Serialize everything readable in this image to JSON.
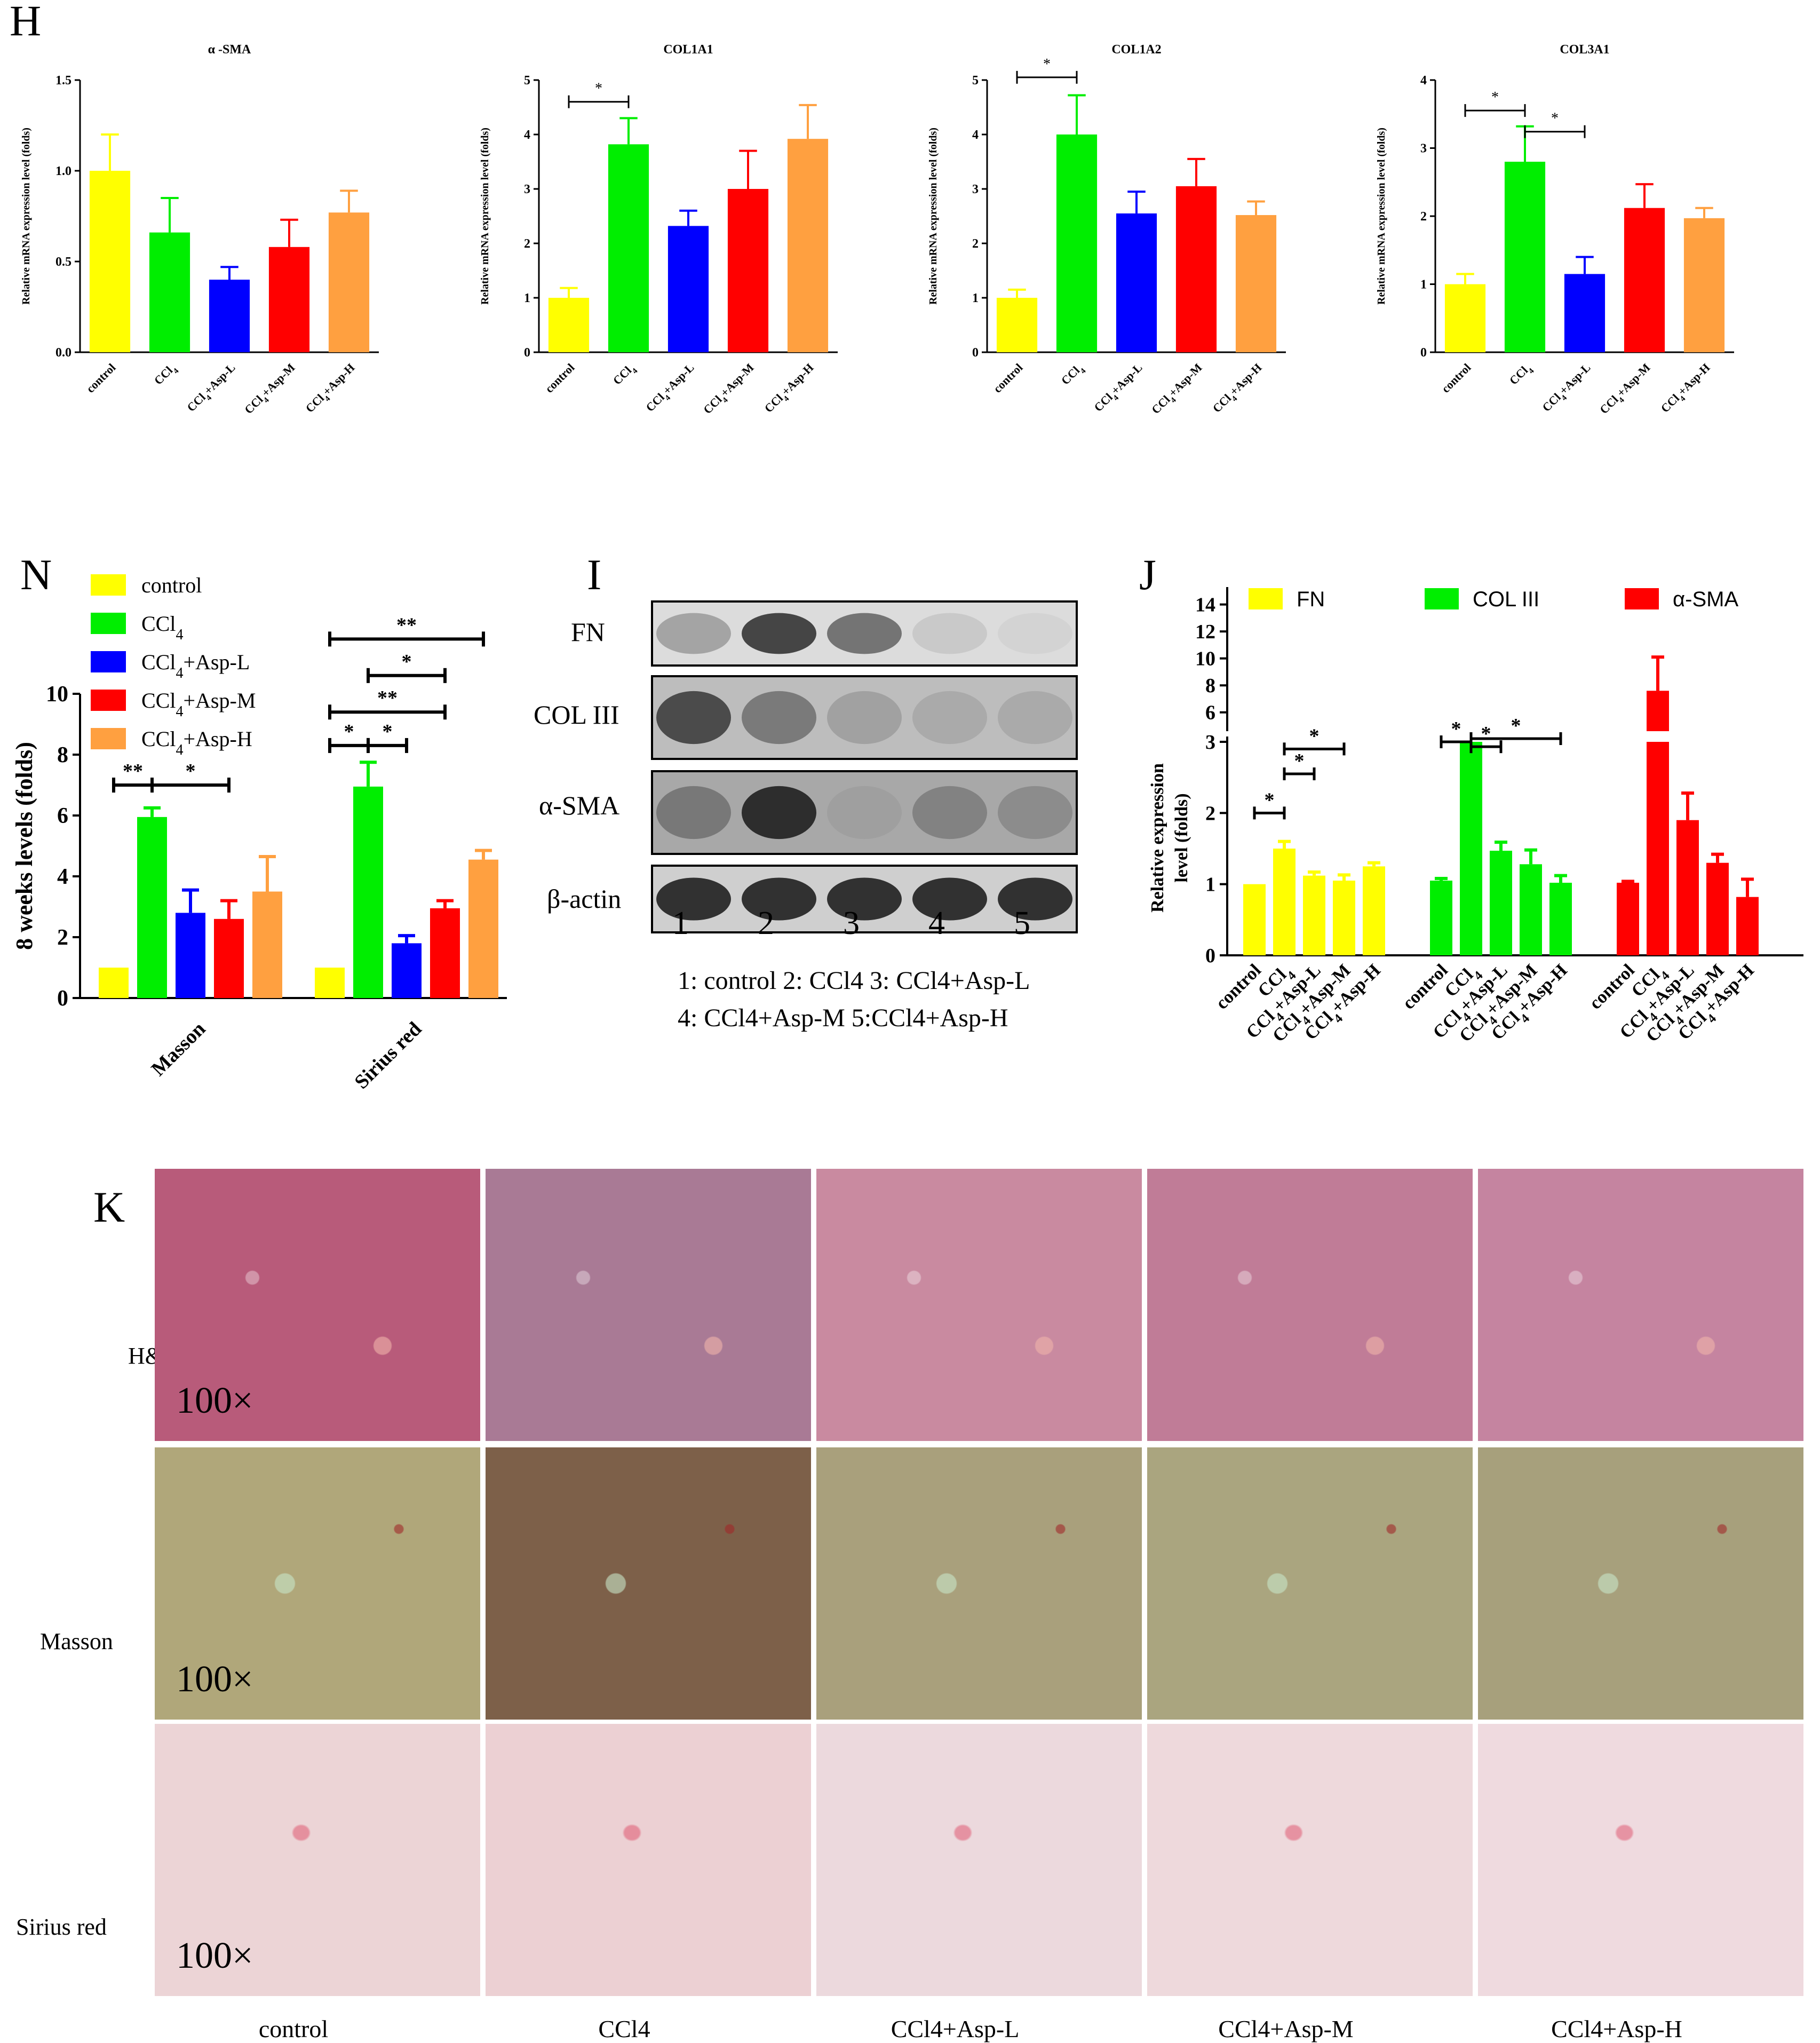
{
  "panels": {
    "H": "H",
    "N": "N",
    "I": "I",
    "J": "J",
    "K": "K"
  },
  "groups": [
    "control",
    "CCl4",
    "CCl4+Asp-L",
    "CCl4+Asp-M",
    "CCl4+Asp-H"
  ],
  "colors": {
    "control": "#ffff00",
    "CCl4": "#00ee00",
    "Asp-L": "#0000ff",
    "Asp-M": "#ff0000",
    "Asp-H": "#ffa040"
  },
  "chart_data": [
    {
      "id": "H1",
      "type": "bar",
      "title": "α -SMA",
      "ylabel": "Relative mRNA expression level (folds)",
      "categories": [
        "control",
        "CCl4",
        "CCl4+Asp-L",
        "CCl4+Asp-M",
        "CCl4+Asp-H"
      ],
      "values": [
        1.0,
        0.66,
        0.4,
        0.58,
        0.77
      ],
      "errors": [
        0.2,
        0.19,
        0.07,
        0.15,
        0.12
      ],
      "ylim": [
        0,
        1.5
      ],
      "yticks": [
        "0.0",
        "0.5",
        "1.0",
        "1.5"
      ],
      "significance": []
    },
    {
      "id": "H2",
      "type": "bar",
      "title": "COL1A1",
      "ylabel": "Relative mRNA expression level (folds)",
      "categories": [
        "control",
        "CCl4",
        "CCl4+Asp-L",
        "CCl4+Asp-M",
        "CCl4+Asp-H"
      ],
      "values": [
        1.0,
        3.82,
        2.32,
        3.0,
        3.92
      ],
      "errors": [
        0.18,
        0.48,
        0.28,
        0.7,
        0.62
      ],
      "ylim": [
        0,
        5
      ],
      "yticks": [
        "0",
        "1",
        "2",
        "3",
        "4",
        "5"
      ],
      "significance": [
        {
          "from": 0,
          "to": 1,
          "label": "*"
        }
      ]
    },
    {
      "id": "H3",
      "type": "bar",
      "title": "COL1A2",
      "ylabel": "Relative mRNA expression level (folds)",
      "categories": [
        "control",
        "CCl4",
        "CCl4+Asp-L",
        "CCl4+Asp-M",
        "CCl4+Asp-H"
      ],
      "values": [
        1.0,
        4.0,
        2.55,
        3.05,
        2.52
      ],
      "errors": [
        0.15,
        0.72,
        0.4,
        0.5,
        0.25
      ],
      "ylim": [
        0,
        5
      ],
      "yticks": [
        "0",
        "1",
        "2",
        "3",
        "4",
        "5"
      ],
      "significance": [
        {
          "from": 0,
          "to": 1,
          "label": "*"
        }
      ]
    },
    {
      "id": "H4",
      "type": "bar",
      "title": "COL3A1",
      "ylabel": "Relative mRNA expression level (folds)",
      "categories": [
        "control",
        "CCl4",
        "CCl4+Asp-L",
        "CCl4+Asp-M",
        "CCl4+Asp-H"
      ],
      "values": [
        1.0,
        2.8,
        1.15,
        2.12,
        1.97
      ],
      "errors": [
        0.15,
        0.52,
        0.25,
        0.35,
        0.15
      ],
      "ylim": [
        0,
        4
      ],
      "yticks": [
        "0",
        "1",
        "2",
        "3",
        "4"
      ],
      "significance": [
        {
          "from": 0,
          "to": 1,
          "label": "*"
        },
        {
          "from": 1,
          "to": 2,
          "label": "*"
        }
      ]
    },
    {
      "id": "N",
      "type": "bar",
      "ylabel": "8 weeks levels (folds)",
      "categories": [
        "Masson",
        "Sirius red"
      ],
      "series": [
        {
          "name": "control",
          "values": [
            1.0,
            1.0
          ],
          "errors": [
            0,
            0
          ]
        },
        {
          "name": "CCl4",
          "values": [
            5.95,
            6.95
          ],
          "errors": [
            0.3,
            0.8
          ]
        },
        {
          "name": "CCl4+Asp-L",
          "values": [
            2.8,
            1.8
          ],
          "errors": [
            0.75,
            0.25
          ]
        },
        {
          "name": "CCl4+Asp-M",
          "values": [
            2.6,
            2.95
          ],
          "errors": [
            0.6,
            0.25
          ]
        },
        {
          "name": "CCl4+Asp-H",
          "values": [
            3.5,
            4.55
          ],
          "errors": [
            1.15,
            0.3
          ]
        }
      ],
      "ylim": [
        0,
        10
      ],
      "yticks": [
        "0",
        "2",
        "4",
        "6",
        "8",
        "10"
      ],
      "significance": [
        {
          "group": 0,
          "from": 0,
          "to": 1,
          "label": "**",
          "level": 7
        },
        {
          "group": 0,
          "from": 1,
          "to": 3,
          "label": "*",
          "level": 7
        },
        {
          "group": 1,
          "from": 0,
          "to": 1,
          "label": "*",
          "level": 8.3
        },
        {
          "group": 1,
          "from": 1,
          "to": 2,
          "label": "*",
          "level": 8.3
        },
        {
          "group": 1,
          "from": 0,
          "to": 3,
          "label": "**",
          "level": 9.4
        },
        {
          "group": 1,
          "from": 1,
          "to": 3,
          "label": "*",
          "level": 10.6
        },
        {
          "group": 1,
          "from": 0,
          "to": 4,
          "label": "**",
          "level": 11.8
        }
      ]
    },
    {
      "id": "J",
      "type": "bar",
      "ylabel": "Relative expression level (folds)",
      "groups": [
        "FN",
        "COL III",
        "α-SMA"
      ],
      "categories": [
        "control",
        "CCl4",
        "CCl4+Asp-L",
        "CCl4+Asp-M",
        "CCl4+Asp-H"
      ],
      "series": [
        {
          "name": "FN",
          "values": [
            1.0,
            1.5,
            1.12,
            1.05,
            1.25
          ],
          "errors": [
            0,
            0.1,
            0.05,
            0.08,
            0.05
          ]
        },
        {
          "name": "COL III",
          "values": [
            1.05,
            3.0,
            1.47,
            1.28,
            1.02
          ],
          "errors": [
            0.03,
            0,
            0.12,
            0.2,
            0.1
          ]
        },
        {
          "name": "α-SMA",
          "values": [
            1.02,
            7.6,
            1.9,
            1.3,
            0.82
          ],
          "errors": [
            0.02,
            2.5,
            0.38,
            0.12,
            0.25
          ]
        }
      ],
      "yticks_lower": [
        "0",
        "1",
        "2",
        "3"
      ],
      "yticks_upper": [
        "6",
        "8",
        "10",
        "12",
        "14"
      ],
      "significance": [
        {
          "group": 0,
          "from": 0,
          "to": 1,
          "label": "*",
          "level": 2.0
        },
        {
          "group": 0,
          "from": 1,
          "to": 2,
          "label": "*",
          "level": 2.55
        },
        {
          "group": 0,
          "from": 1,
          "to": 3,
          "label": "*",
          "level": 2.9
        },
        {
          "group": 1,
          "from": 0,
          "to": 1,
          "label": "*",
          "level": 3.0
        },
        {
          "group": 1,
          "from": 1,
          "to": 2,
          "label": "*",
          "level": 3.45
        },
        {
          "group": 1,
          "from": 1,
          "to": 4,
          "label": "*",
          "level": 4.05
        }
      ]
    }
  ],
  "blot": {
    "labels": [
      "FN",
      "COL III",
      "α-SMA",
      "β-actin"
    ],
    "lanes": [
      "1",
      "2",
      "3",
      "4",
      "5"
    ],
    "caption_line1": "1: control  2: CCl4  3: CCl4+Asp-L",
    "caption_line2": "4: CCl4+Asp-M 5:CCl4+Asp-H"
  },
  "histology": {
    "rows": [
      "H&E",
      "Masson",
      "Sirius red"
    ],
    "columns": [
      "control",
      "CCl4",
      "CCl4+Asp-L",
      "CCl4+Asp-M",
      "CCl4+Asp-H"
    ],
    "magnification": "100×"
  }
}
